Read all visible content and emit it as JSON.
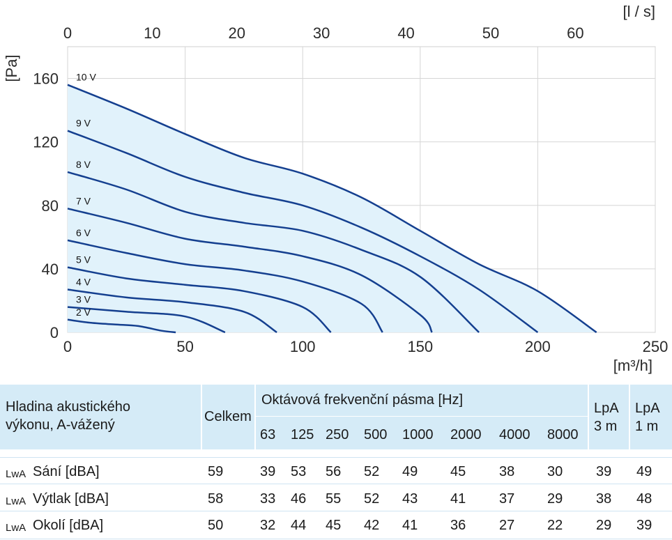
{
  "chart_data": {
    "type": "line",
    "x_unit_bottom": "[m³/h]",
    "x_unit_top": "[l / s]",
    "y_unit": "[Pa]",
    "xlim": [
      0,
      250
    ],
    "ylim": [
      0,
      180
    ],
    "x_ticks_bottom": [
      "0",
      "50",
      "100",
      "150",
      "200",
      "250"
    ],
    "x_ticks_top": [
      "0",
      "10",
      "20",
      "30",
      "40",
      "50",
      "60"
    ],
    "y_ticks": [
      "0",
      "40",
      "80",
      "120",
      "160"
    ],
    "grid": true,
    "line_color": "#143f8f",
    "fill_color": "#e1f2fb",
    "series": [
      {
        "name": "10 V",
        "x": [
          0,
          25,
          50,
          75,
          100,
          125,
          150,
          175,
          200,
          225
        ],
        "y": [
          156,
          141,
          125,
          110,
          100,
          85,
          64,
          43,
          26,
          0
        ]
      },
      {
        "name": "9 V",
        "x": [
          0,
          25,
          50,
          75,
          100,
          125,
          150,
          175,
          200
        ],
        "y": [
          127,
          113,
          98,
          88,
          80,
          66,
          48,
          27,
          0
        ]
      },
      {
        "name": "8 V",
        "x": [
          0,
          25,
          50,
          75,
          100,
          125,
          150,
          175
        ],
        "y": [
          101,
          90,
          76,
          69,
          64,
          52,
          35,
          0
        ]
      },
      {
        "name": "7 V",
        "x": [
          0,
          25,
          50,
          75,
          100,
          125,
          150,
          155
        ],
        "y": [
          78,
          69,
          59,
          54,
          48,
          36,
          11,
          0
        ]
      },
      {
        "name": "6 V",
        "x": [
          0,
          25,
          50,
          75,
          100,
          125,
          134
        ],
        "y": [
          58,
          50,
          43,
          39,
          32,
          18,
          0
        ]
      },
      {
        "name": "5 V",
        "x": [
          0,
          25,
          50,
          75,
          100,
          112
        ],
        "y": [
          41,
          34,
          30,
          26,
          16,
          0
        ]
      },
      {
        "name": "4 V",
        "x": [
          0,
          25,
          50,
          75,
          89
        ],
        "y": [
          27,
          22,
          19,
          13,
          0
        ]
      },
      {
        "name": "3 V",
        "x": [
          0,
          25,
          50,
          67
        ],
        "y": [
          16,
          13,
          10,
          0
        ]
      },
      {
        "name": "2 V",
        "x": [
          0,
          10,
          20,
          30,
          40,
          46
        ],
        "y": [
          8,
          6,
          5,
          4,
          1,
          0
        ]
      }
    ]
  },
  "table": {
    "header": {
      "label_line1": "Hladina akustického",
      "label_line2": "výkonu, A-vážený",
      "total": "Celkem",
      "bands_title": "Oktávová frekvenční pásma [Hz]",
      "bands": [
        "63",
        "125",
        "250",
        "500",
        "1000",
        "2000",
        "4000",
        "8000"
      ],
      "lpa3_line1": "LpA",
      "lpa3_line2": "3 m",
      "lpa1_line1": "LpA",
      "lpa1_line2": "1 m"
    },
    "rows": [
      {
        "prefix": "LwA",
        "label": "Sání [dBA]",
        "total": "59",
        "bands": [
          "39",
          "53",
          "56",
          "52",
          "49",
          "45",
          "38",
          "30"
        ],
        "lpa3": "39",
        "lpa1": "49"
      },
      {
        "prefix": "LwA",
        "label": "Výtlak [dBA]",
        "total": "58",
        "bands": [
          "33",
          "46",
          "55",
          "52",
          "43",
          "41",
          "37",
          "29"
        ],
        "lpa3": "38",
        "lpa1": "48"
      },
      {
        "prefix": "LwA",
        "label": "Okolí [dBA]",
        "total": "50",
        "bands": [
          "32",
          "44",
          "45",
          "42",
          "41",
          "36",
          "27",
          "22"
        ],
        "lpa3": "29",
        "lpa1": "39"
      }
    ]
  }
}
